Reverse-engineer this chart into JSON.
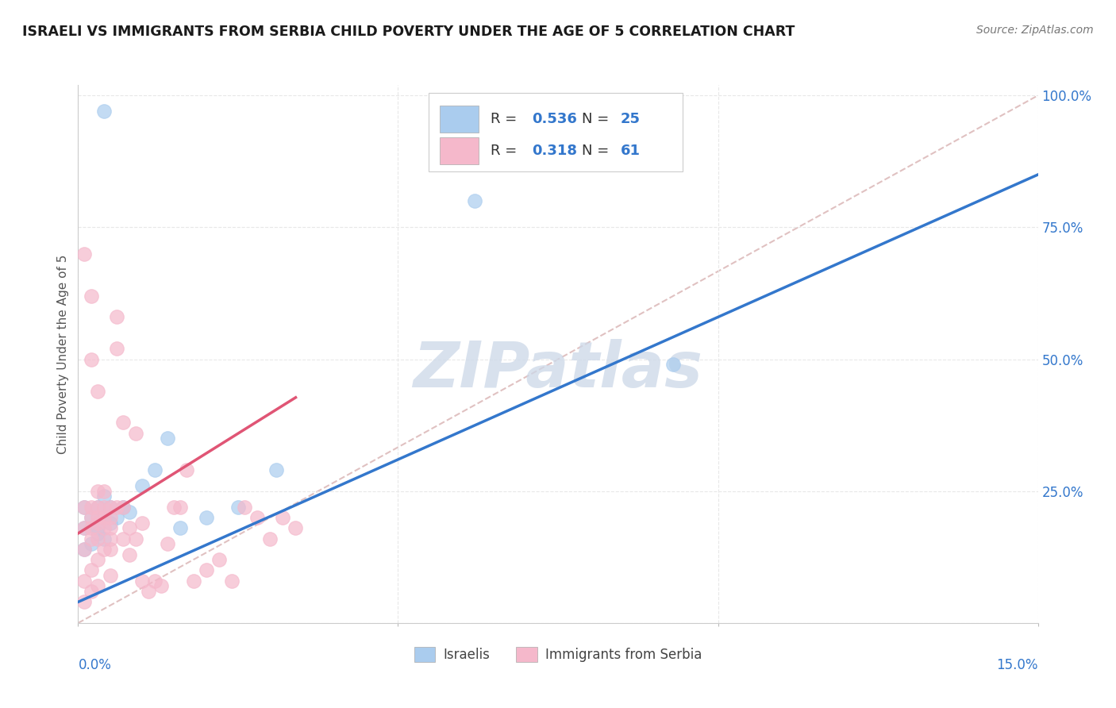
{
  "title": "ISRAELI VS IMMIGRANTS FROM SERBIA CHILD POVERTY UNDER THE AGE OF 5 CORRELATION CHART",
  "source": "Source: ZipAtlas.com",
  "ylabel": "Child Poverty Under the Age of 5",
  "legend_label1": "Israelis",
  "legend_label2": "Immigrants from Serbia",
  "legend_r1": "0.536",
  "legend_n1": "25",
  "legend_r2": "0.318",
  "legend_n2": "61",
  "color_blue": "#aaccee",
  "color_pink": "#f5b8cb",
  "color_blue_line": "#3377cc",
  "color_pink_line": "#e05575",
  "color_diag": "#ddbbbb",
  "color_grid": "#e8e8e8",
  "xlim": [
    0.0,
    0.15
  ],
  "ylim": [
    0.0,
    1.02
  ],
  "yticks": [
    0.0,
    0.25,
    0.5,
    0.75,
    1.0
  ],
  "ytick_labels": [
    "",
    "25.0%",
    "50.0%",
    "75.0%",
    "100.0%"
  ],
  "israelis_x": [
    0.001,
    0.001,
    0.001,
    0.002,
    0.002,
    0.003,
    0.003,
    0.003,
    0.004,
    0.004,
    0.004,
    0.005,
    0.005,
    0.006,
    0.007,
    0.008,
    0.01,
    0.012,
    0.014,
    0.016,
    0.02,
    0.025,
    0.031,
    0.062,
    0.093
  ],
  "israelis_y": [
    0.14,
    0.18,
    0.22,
    0.15,
    0.2,
    0.17,
    0.22,
    0.18,
    0.2,
    0.24,
    0.16,
    0.19,
    0.22,
    0.2,
    0.22,
    0.21,
    0.26,
    0.29,
    0.35,
    0.18,
    0.2,
    0.22,
    0.29,
    0.8,
    0.49
  ],
  "israelis_outlier_x": [
    0.004
  ],
  "israelis_outlier_y": [
    0.97
  ],
  "serbia_x": [
    0.001,
    0.001,
    0.001,
    0.001,
    0.001,
    0.002,
    0.002,
    0.002,
    0.002,
    0.002,
    0.002,
    0.003,
    0.003,
    0.003,
    0.003,
    0.003,
    0.003,
    0.003,
    0.004,
    0.004,
    0.004,
    0.004,
    0.004,
    0.005,
    0.005,
    0.005,
    0.005,
    0.005,
    0.005,
    0.006,
    0.006,
    0.006,
    0.007,
    0.007,
    0.007,
    0.008,
    0.008,
    0.009,
    0.009,
    0.01,
    0.01,
    0.011,
    0.012,
    0.013,
    0.014,
    0.015,
    0.016,
    0.017,
    0.018,
    0.02,
    0.022,
    0.024,
    0.026,
    0.028,
    0.03,
    0.032,
    0.034,
    0.001,
    0.002,
    0.002,
    0.003
  ],
  "serbia_y": [
    0.18,
    0.22,
    0.14,
    0.08,
    0.04,
    0.2,
    0.16,
    0.22,
    0.1,
    0.06,
    0.18,
    0.19,
    0.22,
    0.16,
    0.12,
    0.07,
    0.2,
    0.25,
    0.22,
    0.18,
    0.14,
    0.25,
    0.2,
    0.18,
    0.22,
    0.14,
    0.2,
    0.16,
    0.09,
    0.58,
    0.52,
    0.22,
    0.38,
    0.22,
    0.16,
    0.18,
    0.13,
    0.36,
    0.16,
    0.19,
    0.08,
    0.06,
    0.08,
    0.07,
    0.15,
    0.22,
    0.22,
    0.29,
    0.08,
    0.1,
    0.12,
    0.08,
    0.22,
    0.2,
    0.16,
    0.2,
    0.18,
    0.7,
    0.62,
    0.5,
    0.44
  ]
}
